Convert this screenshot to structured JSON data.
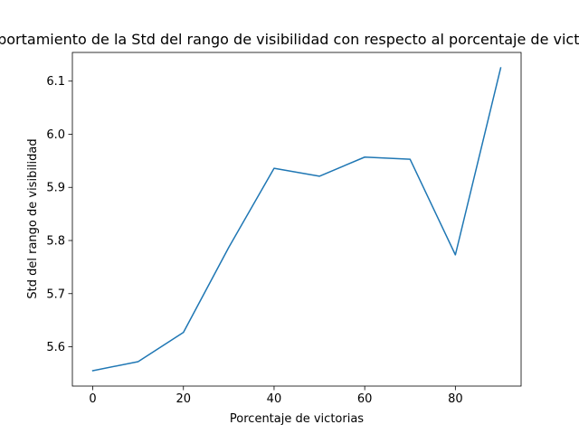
{
  "chart_data": {
    "type": "line",
    "title": "Comportamiento de la Std del rango de visibilidad con respecto al porcentaje de victorias",
    "xlabel": "Porcentaje de victorias",
    "ylabel": "Std del rango de visibilidad",
    "xlim": [
      -4.5,
      94.5
    ],
    "ylim": [
      5.526,
      6.154
    ],
    "xticks": [
      0,
      20,
      40,
      60,
      80
    ],
    "yticks": [
      5.6,
      5.7,
      5.8,
      5.9,
      6.0,
      6.1
    ],
    "grid": false,
    "series": [
      {
        "color": "#1f77b4",
        "x": [
          0,
          10,
          20,
          30,
          40,
          50,
          60,
          70,
          80,
          90
        ],
        "y": [
          5.555,
          5.572,
          5.627,
          5.787,
          5.936,
          5.921,
          5.957,
          5.953,
          5.773,
          6.125
        ]
      }
    ]
  }
}
